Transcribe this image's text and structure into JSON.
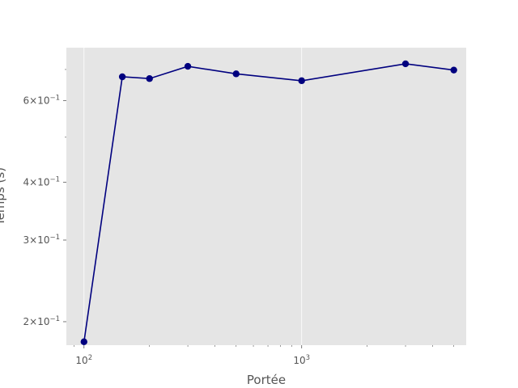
{
  "chart_data": {
    "type": "line",
    "xlabel": "Portée",
    "ylabel": "Temps (s)",
    "x_scale": "log",
    "y_scale": "log",
    "xlim": [
      83,
      5700
    ],
    "ylim": [
      0.178,
      0.78
    ],
    "grid": true,
    "x_major_ticks": [
      {
        "value": 100,
        "base": "10",
        "exp": "2"
      },
      {
        "value": 1000,
        "base": "10",
        "exp": "3"
      }
    ],
    "y_major_ticks": [
      {
        "value": 0.2,
        "mant": "2",
        "exp": "−1"
      },
      {
        "value": 0.3,
        "mant": "3",
        "exp": "−1"
      },
      {
        "value": 0.4,
        "mant": "4",
        "exp": "−1"
      },
      {
        "value": 0.6,
        "mant": "6",
        "exp": "−1"
      }
    ],
    "y_minor_ticks": [
      0.5,
      0.7
    ],
    "series": [
      {
        "color": "#00007f",
        "x": [
          100,
          150,
          200,
          300,
          500,
          1000,
          3000,
          5000
        ],
        "y": [
          0.181,
          0.675,
          0.669,
          0.711,
          0.685,
          0.662,
          0.72,
          0.698
        ]
      }
    ]
  }
}
